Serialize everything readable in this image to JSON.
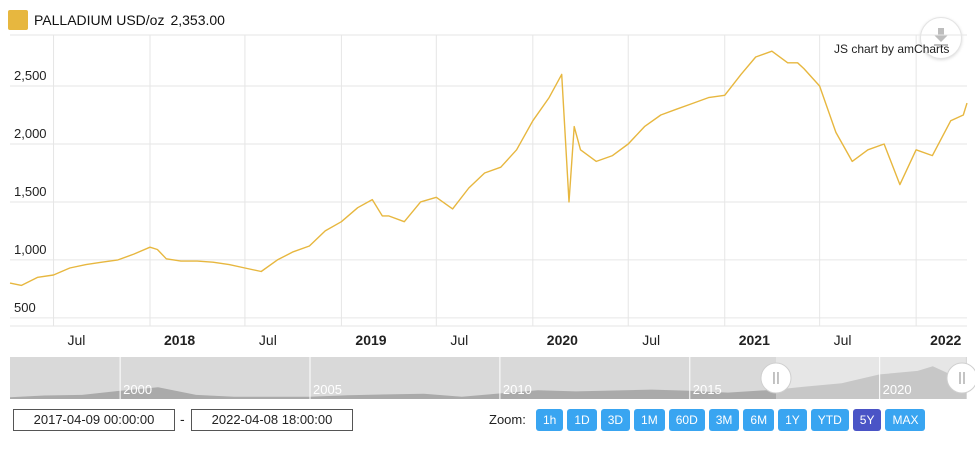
{
  "legend": {
    "swatch_color": "#e7b73f",
    "series_label": "PALLADIUM USD/oz",
    "value": "2,353.00"
  },
  "credit": "JS chart by amCharts",
  "export_icon": "download-arrow-icon",
  "date_range": {
    "from": "2017-04-09 00:00:00",
    "separator": "-",
    "to": "2022-04-08 18:00:00"
  },
  "zoom": {
    "label": "Zoom:",
    "buttons": [
      {
        "label": "1h"
      },
      {
        "label": "1D"
      },
      {
        "label": "3D"
      },
      {
        "label": "1M"
      },
      {
        "label": "60D"
      },
      {
        "label": "3M"
      },
      {
        "label": "6M"
      },
      {
        "label": "1Y"
      },
      {
        "label": "YTD"
      },
      {
        "label": "5Y",
        "active": true
      },
      {
        "label": "MAX"
      }
    ]
  },
  "colors": {
    "line": "#e7b73f",
    "grid": "#e6e6e6",
    "button": "#39a5f1",
    "button_active": "#4a54c6",
    "scroll_bg": "#d9d9d9",
    "scroll_fill": "#aaaaaa"
  },
  "chart_data": {
    "type": "line",
    "series": [
      {
        "x": [
          "2017-04-09",
          "2017-05-01",
          "2017-06-01",
          "2017-07-01",
          "2017-08-01",
          "2017-09-01",
          "2017-10-01",
          "2017-11-01",
          "2017-12-01",
          "2018-01-01",
          "2018-01-15",
          "2018-02-01",
          "2018-03-01",
          "2018-04-01",
          "2018-05-01",
          "2018-06-01",
          "2018-07-01",
          "2018-08-01",
          "2018-09-01",
          "2018-10-01",
          "2018-11-01",
          "2018-12-01",
          "2019-01-01",
          "2019-02-01",
          "2019-03-01",
          "2019-03-20",
          "2019-04-01",
          "2019-05-01",
          "2019-06-01",
          "2019-07-01",
          "2019-08-01",
          "2019-09-01",
          "2019-10-01",
          "2019-11-01",
          "2019-12-01",
          "2020-01-01",
          "2020-02-01",
          "2020-02-25",
          "2020-03-10",
          "2020-03-20",
          "2020-04-01",
          "2020-05-01",
          "2020-06-01",
          "2020-07-01",
          "2020-08-01",
          "2020-09-01",
          "2020-10-01",
          "2020-11-01",
          "2020-12-01",
          "2021-01-01",
          "2021-02-01",
          "2021-03-01",
          "2021-04-01",
          "2021-05-01",
          "2021-05-20",
          "2021-06-01",
          "2021-07-01",
          "2021-08-01",
          "2021-09-01",
          "2021-10-01",
          "2021-11-01",
          "2021-12-01",
          "2022-01-01",
          "2022-02-01",
          "2022-03-08",
          "2022-04-01",
          "2022-04-08"
        ],
        "values": [
          800,
          780,
          850,
          870,
          930,
          960,
          980,
          1000,
          1050,
          1110,
          1090,
          1010,
          990,
          990,
          980,
          960,
          930,
          900,
          1000,
          1070,
          1120,
          1250,
          1330,
          1450,
          1520,
          1380,
          1380,
          1330,
          1500,
          1540,
          1440,
          1620,
          1750,
          1800,
          1950,
          2200,
          2400,
          2600,
          1500,
          2150,
          1950,
          1850,
          1900,
          2000,
          2150,
          2250,
          2300,
          2350,
          2400,
          2420,
          2600,
          2750,
          2800,
          2700,
          2700,
          2650,
          2500,
          2100,
          1850,
          1950,
          2000,
          1650,
          1950,
          1900,
          2200,
          2250,
          2353
        ]
      }
    ],
    "x_ticks": [
      {
        "label": "Jul",
        "date": "2017-07-01",
        "bold": false
      },
      {
        "label": "2018",
        "date": "2018-01-01",
        "bold": true
      },
      {
        "label": "Jul",
        "date": "2018-07-01",
        "bold": false
      },
      {
        "label": "2019",
        "date": "2019-01-01",
        "bold": true
      },
      {
        "label": "Jul",
        "date": "2019-07-01",
        "bold": false
      },
      {
        "label": "2020",
        "date": "2020-01-01",
        "bold": true
      },
      {
        "label": "Jul",
        "date": "2020-07-01",
        "bold": false
      },
      {
        "label": "2021",
        "date": "2021-01-01",
        "bold": true
      },
      {
        "label": "Jul",
        "date": "2021-07-01",
        "bold": false
      },
      {
        "label": "2022",
        "date": "2022-01-01",
        "bold": true
      }
    ],
    "y_ticks": [
      {
        "label": "500",
        "value": 500
      },
      {
        "label": "1,000",
        "value": 1000
      },
      {
        "label": "1,500",
        "value": 1500
      },
      {
        "label": "2,000",
        "value": 2000
      },
      {
        "label": "2,500",
        "value": 2500
      }
    ],
    "xlim": [
      "2017-04-09",
      "2022-04-08"
    ],
    "ylim": [
      430,
      2940
    ],
    "grid": true,
    "scrollbar": {
      "labels": [
        {
          "label": "2000",
          "year": 2000
        },
        {
          "label": "2005",
          "year": 2005
        },
        {
          "label": "2010",
          "year": 2010
        },
        {
          "label": "2015",
          "year": 2015
        },
        {
          "label": "2020",
          "year": 2020
        }
      ],
      "range_years": [
        1997.1,
        2022.3
      ],
      "selection_years": [
        2017.27,
        2022.27
      ],
      "history": [
        {
          "year": 1997.1,
          "value": 150
        },
        {
          "year": 1998,
          "value": 300
        },
        {
          "year": 1999,
          "value": 350
        },
        {
          "year": 2000,
          "value": 700
        },
        {
          "year": 2001,
          "value": 1000
        },
        {
          "year": 2002,
          "value": 350
        },
        {
          "year": 2003,
          "value": 200
        },
        {
          "year": 2005,
          "value": 200
        },
        {
          "year": 2006,
          "value": 320
        },
        {
          "year": 2008,
          "value": 450
        },
        {
          "year": 2009,
          "value": 200
        },
        {
          "year": 2011,
          "value": 750
        },
        {
          "year": 2012,
          "value": 650
        },
        {
          "year": 2014,
          "value": 800
        },
        {
          "year": 2015,
          "value": 700
        },
        {
          "year": 2016,
          "value": 550
        },
        {
          "year": 2017.27,
          "value": 800
        },
        {
          "year": 2018,
          "value": 1050
        },
        {
          "year": 2019,
          "value": 1350
        },
        {
          "year": 2020,
          "value": 2100
        },
        {
          "year": 2021,
          "value": 2400
        },
        {
          "year": 2021.4,
          "value": 2800
        },
        {
          "year": 2022,
          "value": 1900
        },
        {
          "year": 2022.27,
          "value": 2353
        }
      ]
    }
  }
}
